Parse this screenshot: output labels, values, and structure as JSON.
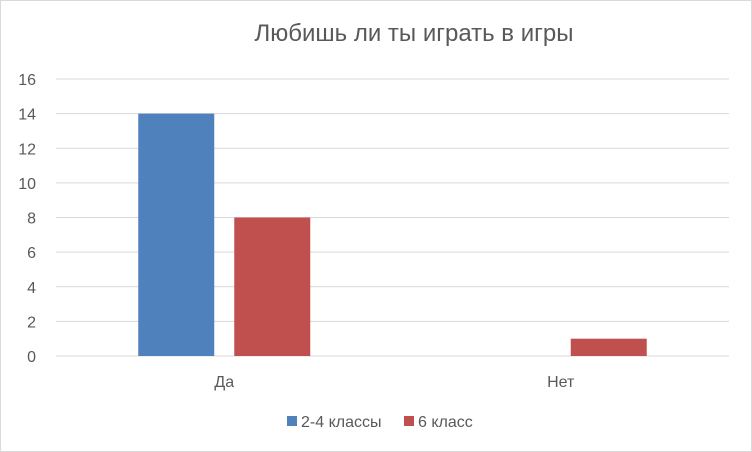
{
  "chart_data": {
    "type": "bar",
    "title": "Любишь ли ты играть в игры",
    "categories": [
      "Да",
      "Нет"
    ],
    "series": [
      {
        "name": "2-4 классы",
        "values": [
          14,
          0
        ],
        "color": "#4f81bd"
      },
      {
        "name": "6 класс",
        "values": [
          8,
          1
        ],
        "color": "#c0504d"
      }
    ],
    "ylim": [
      0,
      16
    ],
    "yticks": [
      0,
      2,
      4,
      6,
      8,
      10,
      12,
      14,
      16
    ],
    "xlabel": "",
    "ylabel": "",
    "grid": true,
    "legend_position": "bottom"
  }
}
